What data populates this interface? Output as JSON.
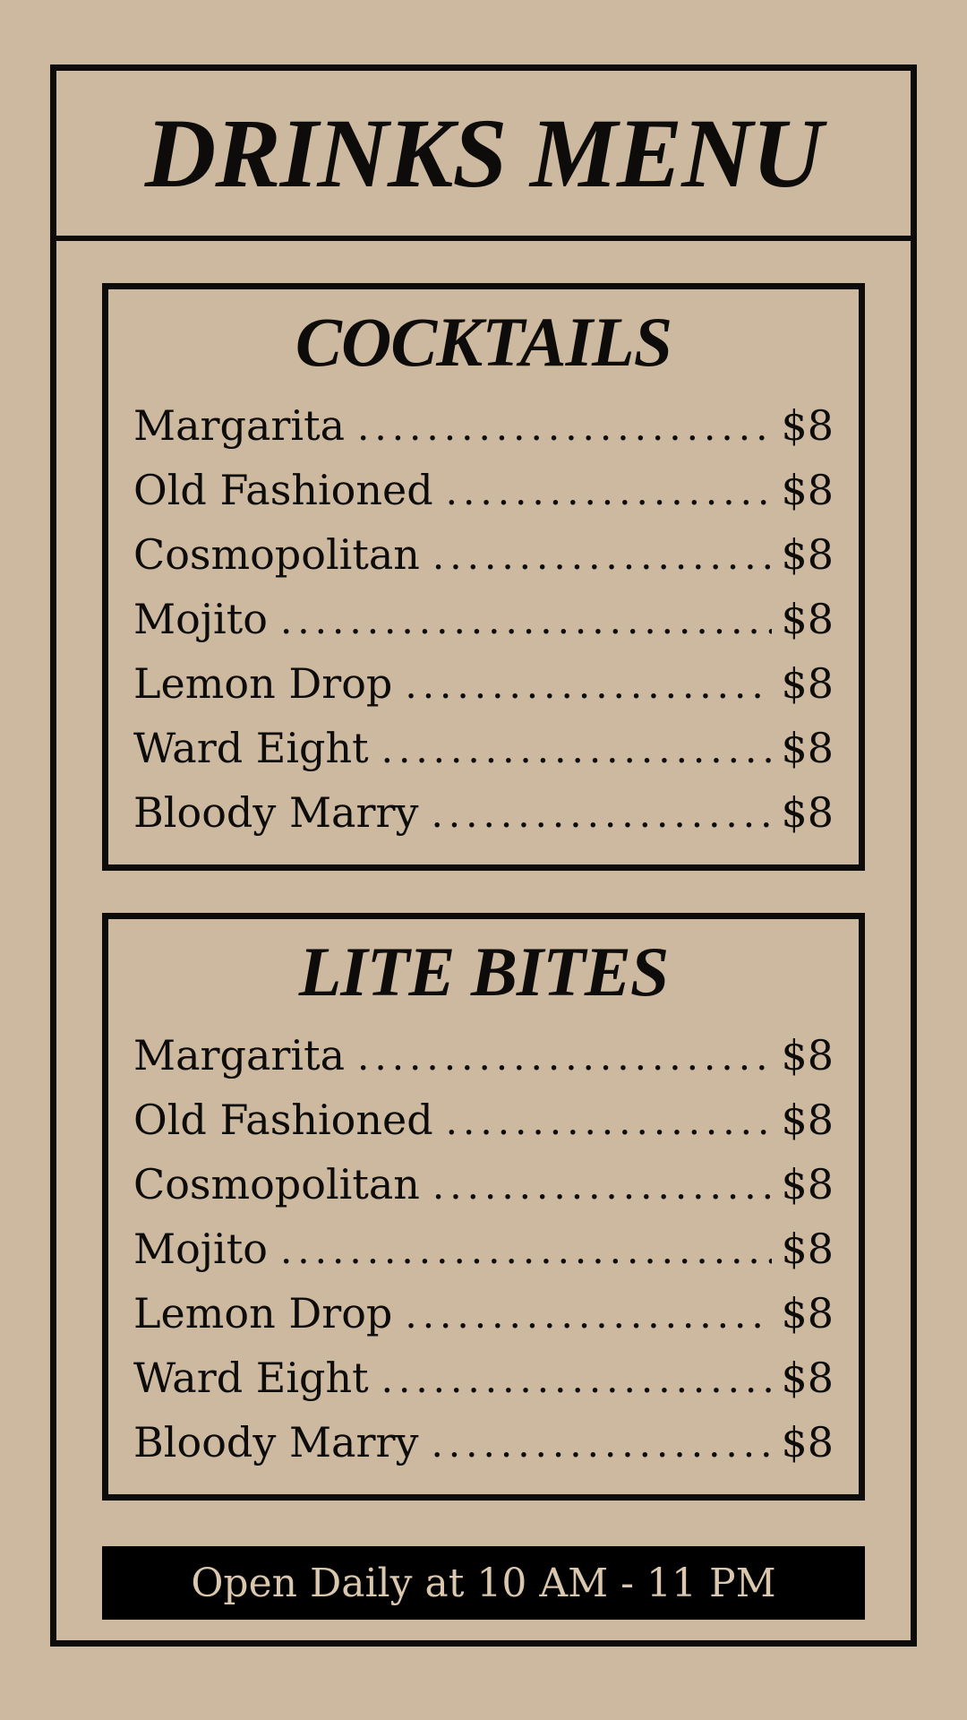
{
  "theme": {
    "bg": "#ccb9a0",
    "ink": "#0d0c0a",
    "bar-bg": "#000000",
    "bar-text": "#dac7ad"
  },
  "menu": {
    "title": "DRINKS MENU",
    "sections": [
      {
        "heading": "COCKTAILS",
        "items": [
          {
            "name": "Margarita",
            "price": "$8"
          },
          {
            "name": "Old Fashioned",
            "price": "$8"
          },
          {
            "name": "Cosmopolitan",
            "price": "$8"
          },
          {
            "name": "Mojito",
            "price": "$8"
          },
          {
            "name": "Lemon Drop",
            "price": "$8"
          },
          {
            "name": "Ward Eight",
            "price": "$8"
          },
          {
            "name": "Bloody Marry",
            "price": "$8"
          }
        ]
      },
      {
        "heading": "LITE BITES",
        "items": [
          {
            "name": "Margarita",
            "price": "$8"
          },
          {
            "name": "Old Fashioned",
            "price": "$8"
          },
          {
            "name": "Cosmopolitan",
            "price": "$8"
          },
          {
            "name": "Mojito",
            "price": "$8"
          },
          {
            "name": "Lemon Drop",
            "price": "$8"
          },
          {
            "name": "Ward Eight",
            "price": "$8"
          },
          {
            "name": "Bloody Marry",
            "price": "$8"
          }
        ]
      }
    ],
    "footer": {
      "text": "Open Daily at 10 AM - 11 PM"
    }
  }
}
